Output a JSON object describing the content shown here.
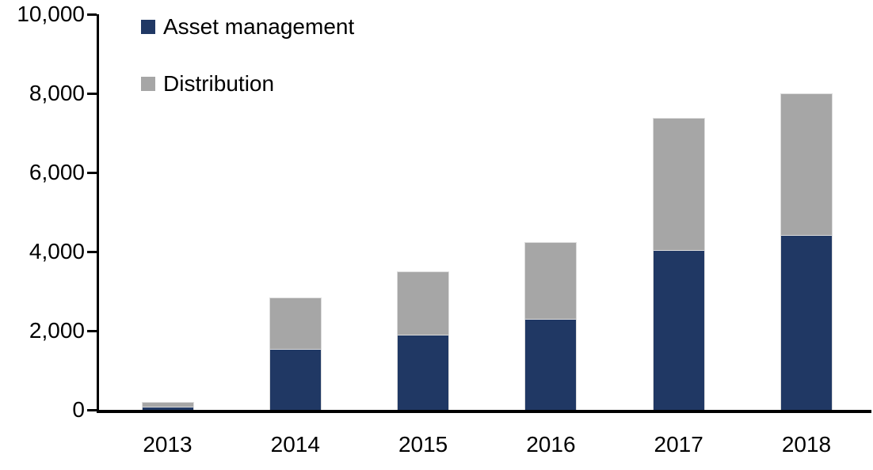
{
  "chart_data": {
    "type": "bar",
    "stacked": true,
    "title": "",
    "xlabel": "",
    "ylabel": "",
    "categories": [
      "2013",
      "2014",
      "2015",
      "2016",
      "2017",
      "2018"
    ],
    "series": [
      {
        "name": "Asset management",
        "color": "#203864",
        "values": [
          80,
          1550,
          1900,
          2300,
          4050,
          4420
        ]
      },
      {
        "name": "Distribution",
        "color": "#A6A6A6",
        "values": [
          120,
          1300,
          1600,
          1950,
          3330,
          3580
        ]
      }
    ],
    "totals": [
      200,
      2850,
      3500,
      4250,
      7380,
      8000
    ],
    "ylim": [
      0,
      10000
    ],
    "yticks": [
      0,
      2000,
      4000,
      6000,
      8000,
      10000
    ],
    "ytick_labels": [
      "0",
      "2,000",
      "4,000",
      "6,000",
      "8,000",
      "10,000"
    ],
    "grid": false,
    "legend_position": "top-left"
  },
  "colors": {
    "axis": "#000000",
    "background": "#ffffff",
    "text": "#000000",
    "bar_border": "#dcdcdc"
  }
}
